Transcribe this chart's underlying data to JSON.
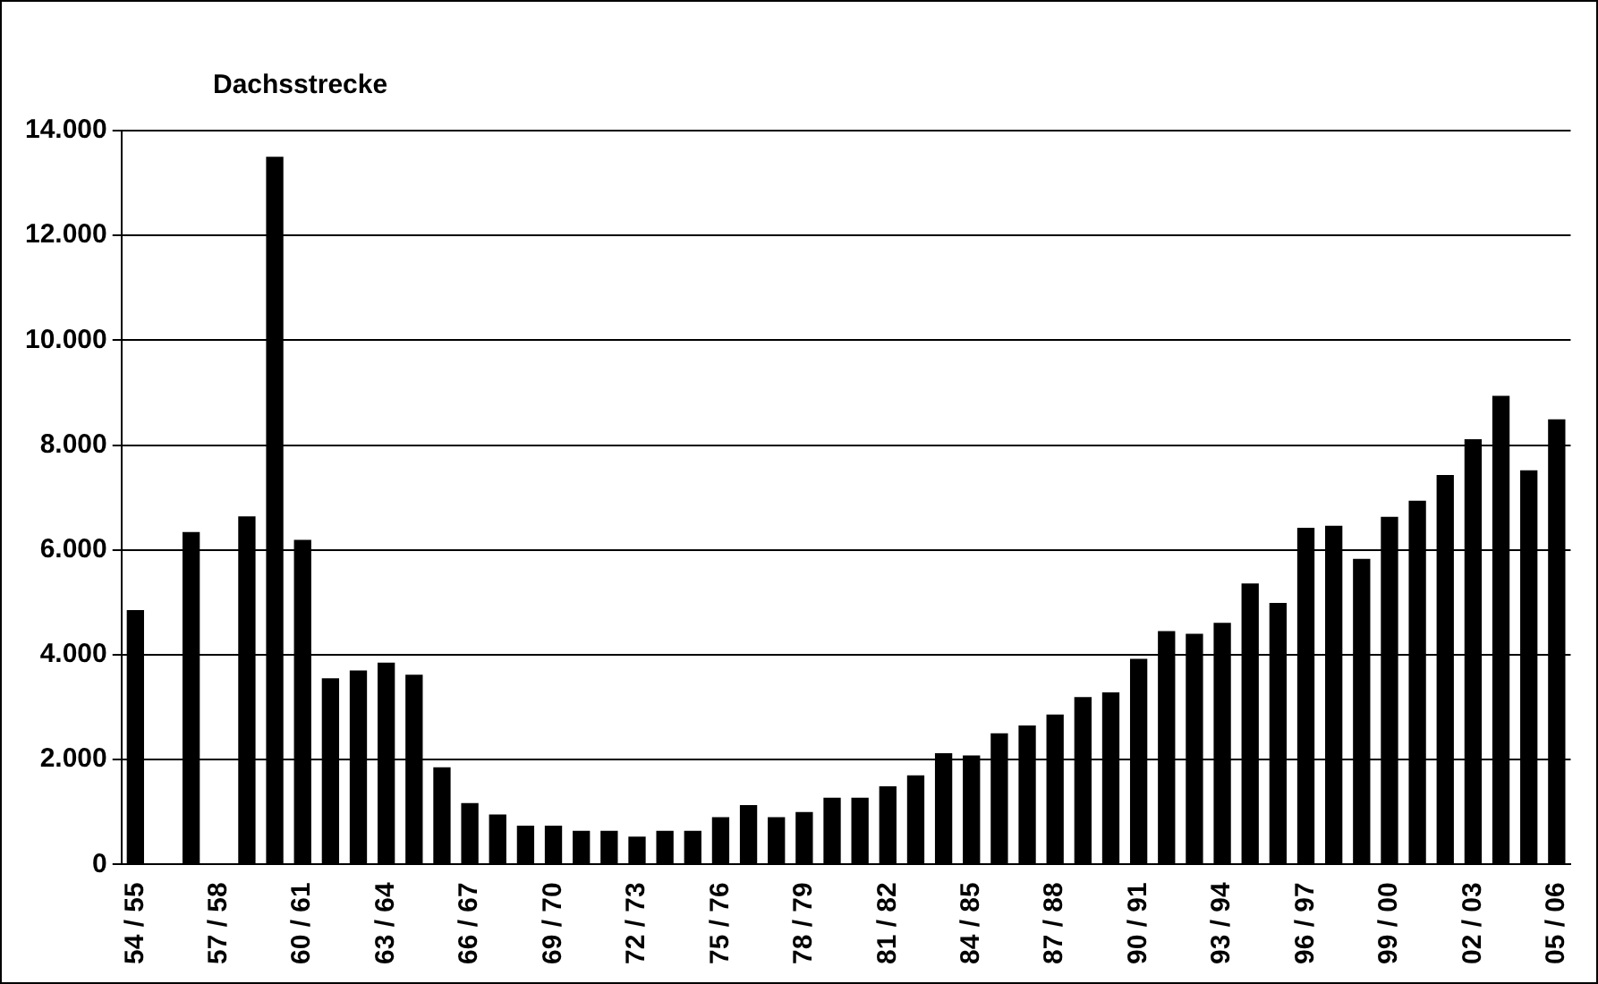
{
  "chart_data": {
    "type": "bar",
    "title": "Dachsstrecke",
    "categories": [
      "54 / 55",
      null,
      null,
      "57 / 58",
      null,
      null,
      "60 / 61",
      null,
      null,
      "63 / 64",
      null,
      null,
      "66 / 67",
      null,
      null,
      "69 / 70",
      null,
      null,
      "72 / 73",
      null,
      null,
      "75 / 76",
      null,
      null,
      "78 / 79",
      null,
      null,
      "81 / 82",
      null,
      null,
      "84 / 85",
      null,
      null,
      "87 / 88",
      null,
      null,
      "90 / 91",
      null,
      null,
      "93 / 94",
      null,
      null,
      "96 / 97",
      null,
      null,
      "99 / 00",
      null,
      null,
      "02 / 03",
      null,
      null,
      "05 / 06"
    ],
    "values": [
      4850,
      null,
      6340,
      null,
      6640,
      13500,
      6190,
      3550,
      3700,
      3850,
      3620,
      1850,
      1170,
      950,
      740,
      740,
      640,
      640,
      530,
      640,
      640,
      900,
      1130,
      900,
      1000,
      1270,
      1270,
      1490,
      1700,
      2120,
      2080,
      2500,
      2650,
      2860,
      3190,
      3280,
      3920,
      4450,
      4400,
      4610,
      5360,
      4990,
      6420,
      6460,
      5830,
      6630,
      6940,
      7430,
      8110,
      8940,
      7520,
      8490
    ],
    "color": "#000000",
    "ylim": [
      0,
      14000
    ],
    "yticks": [
      {
        "value": 0,
        "label": "0"
      },
      {
        "value": 2000,
        "label": "2.000"
      },
      {
        "value": 4000,
        "label": "4.000"
      },
      {
        "value": 6000,
        "label": "6.000"
      },
      {
        "value": 8000,
        "label": "8.000"
      },
      {
        "value": 10000,
        "label": "10.000"
      },
      {
        "value": 12000,
        "label": "12.000"
      },
      {
        "value": 14000,
        "label": "14.000"
      }
    ],
    "grid": "y",
    "legend": false
  }
}
